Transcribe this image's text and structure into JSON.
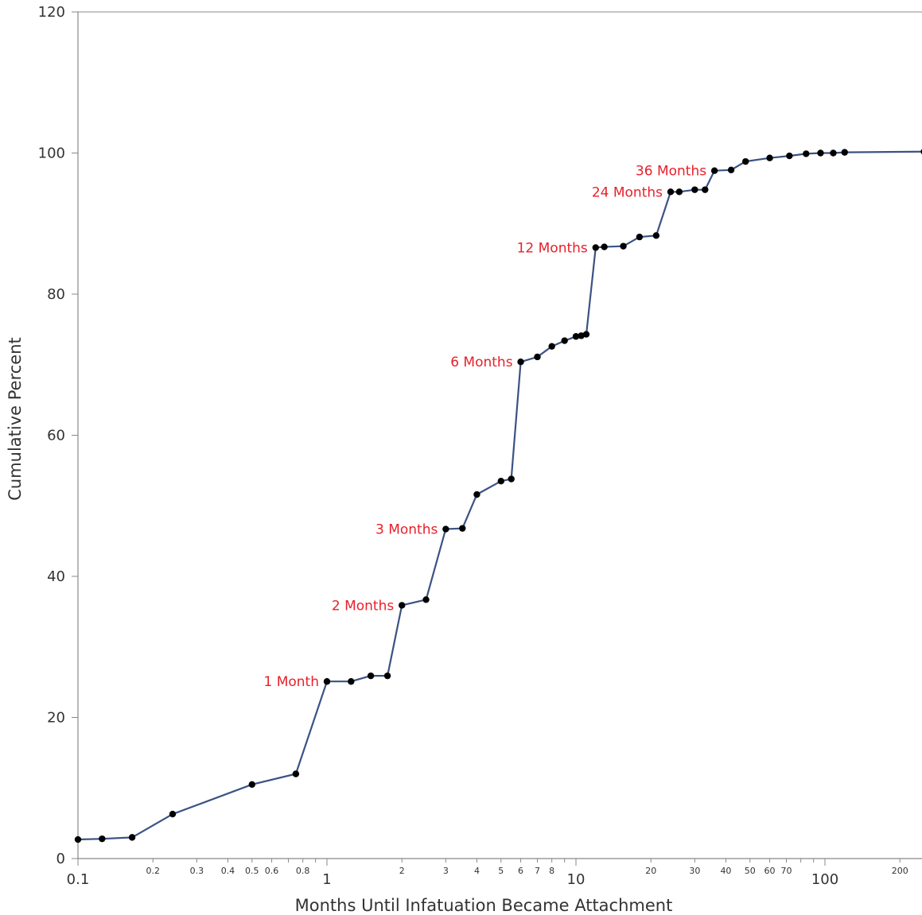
{
  "chart_data": {
    "type": "line",
    "xlabel": "Months Until Infatuation Became Attachment",
    "ylabel": "Cumulative Percent",
    "x_scale": "log",
    "xlim": [
      0.1,
      250
    ],
    "ylim": [
      0,
      120
    ],
    "grid": false,
    "y_ticks": [
      0,
      20,
      40,
      60,
      80,
      100,
      120
    ],
    "x_ticks_major": [
      {
        "value": 0.1,
        "label": "0.1"
      },
      {
        "value": 1,
        "label": "1"
      },
      {
        "value": 10,
        "label": "10"
      },
      {
        "value": 100,
        "label": "100"
      }
    ],
    "x_ticks_minor": [
      {
        "value": 0.2,
        "label": "0.2"
      },
      {
        "value": 0.3,
        "label": "0.3"
      },
      {
        "value": 0.4,
        "label": "0.4"
      },
      {
        "value": 0.5,
        "label": "0.5"
      },
      {
        "value": 0.6,
        "label": "0.6"
      },
      {
        "value": 0.8,
        "label": "0.8"
      },
      {
        "value": 2,
        "label": "2"
      },
      {
        "value": 3,
        "label": "3"
      },
      {
        "value": 4,
        "label": "4"
      },
      {
        "value": 5,
        "label": "5"
      },
      {
        "value": 6,
        "label": "6"
      },
      {
        "value": 7,
        "label": "7"
      },
      {
        "value": 8,
        "label": "8"
      },
      {
        "value": 20,
        "label": "20"
      },
      {
        "value": 30,
        "label": "30"
      },
      {
        "value": 40,
        "label": "40"
      },
      {
        "value": 50,
        "label": "50"
      },
      {
        "value": 60,
        "label": "60"
      },
      {
        "value": 70,
        "label": "70"
      },
      {
        "value": 200,
        "label": "200"
      }
    ],
    "x_ticks_unlabeled": [
      0.7,
      0.9,
      9,
      80,
      90
    ],
    "series": [
      {
        "color": "#3b5284",
        "marker_color": "#000000",
        "points": [
          [
            0.1,
            2.7
          ],
          [
            0.125,
            2.8
          ],
          [
            0.165,
            3.0
          ],
          [
            0.24,
            6.3
          ],
          [
            0.5,
            10.5
          ],
          [
            0.75,
            12.0
          ],
          [
            1.0,
            25.1
          ],
          [
            1.25,
            25.1
          ],
          [
            1.5,
            25.9
          ],
          [
            1.75,
            25.9
          ],
          [
            2.0,
            35.9
          ],
          [
            2.5,
            36.7
          ],
          [
            3.0,
            46.7
          ],
          [
            3.5,
            46.8
          ],
          [
            4.0,
            51.6
          ],
          [
            5.0,
            53.5
          ],
          [
            5.5,
            53.8
          ],
          [
            6.0,
            70.4
          ],
          [
            7.0,
            71.1
          ],
          [
            8.0,
            72.6
          ],
          [
            9.0,
            73.4
          ],
          [
            10.0,
            74.0
          ],
          [
            10.5,
            74.1
          ],
          [
            11.0,
            74.3
          ],
          [
            12.0,
            86.6
          ],
          [
            13.0,
            86.7
          ],
          [
            15.5,
            86.8
          ],
          [
            18.0,
            88.1
          ],
          [
            21.0,
            88.3
          ],
          [
            24.0,
            94.5
          ],
          [
            26.0,
            94.5
          ],
          [
            30.0,
            94.8
          ],
          [
            33.0,
            94.8
          ],
          [
            36.0,
            97.5
          ],
          [
            42.0,
            97.6
          ],
          [
            48.0,
            98.8
          ],
          [
            60.0,
            99.3
          ],
          [
            72.0,
            99.6
          ],
          [
            84.0,
            99.9
          ],
          [
            96.0,
            100.0
          ],
          [
            108.0,
            100.0
          ],
          [
            120.0,
            100.1
          ],
          [
            250.0,
            100.2
          ]
        ]
      }
    ],
    "annotations": [
      {
        "text": "1 Month",
        "x": 1,
        "y": 25.1
      },
      {
        "text": "2 Months",
        "x": 2,
        "y": 35.9
      },
      {
        "text": "3 Months",
        "x": 3,
        "y": 46.7
      },
      {
        "text": "6 Months",
        "x": 6,
        "y": 70.4
      },
      {
        "text": "12 Months",
        "x": 12,
        "y": 86.6
      },
      {
        "text": "24 Months",
        "x": 24,
        "y": 94.5
      },
      {
        "text": "36 Months",
        "x": 36,
        "y": 97.5
      }
    ],
    "annotation_color": "#e8202a",
    "axis_color": "#888888"
  }
}
